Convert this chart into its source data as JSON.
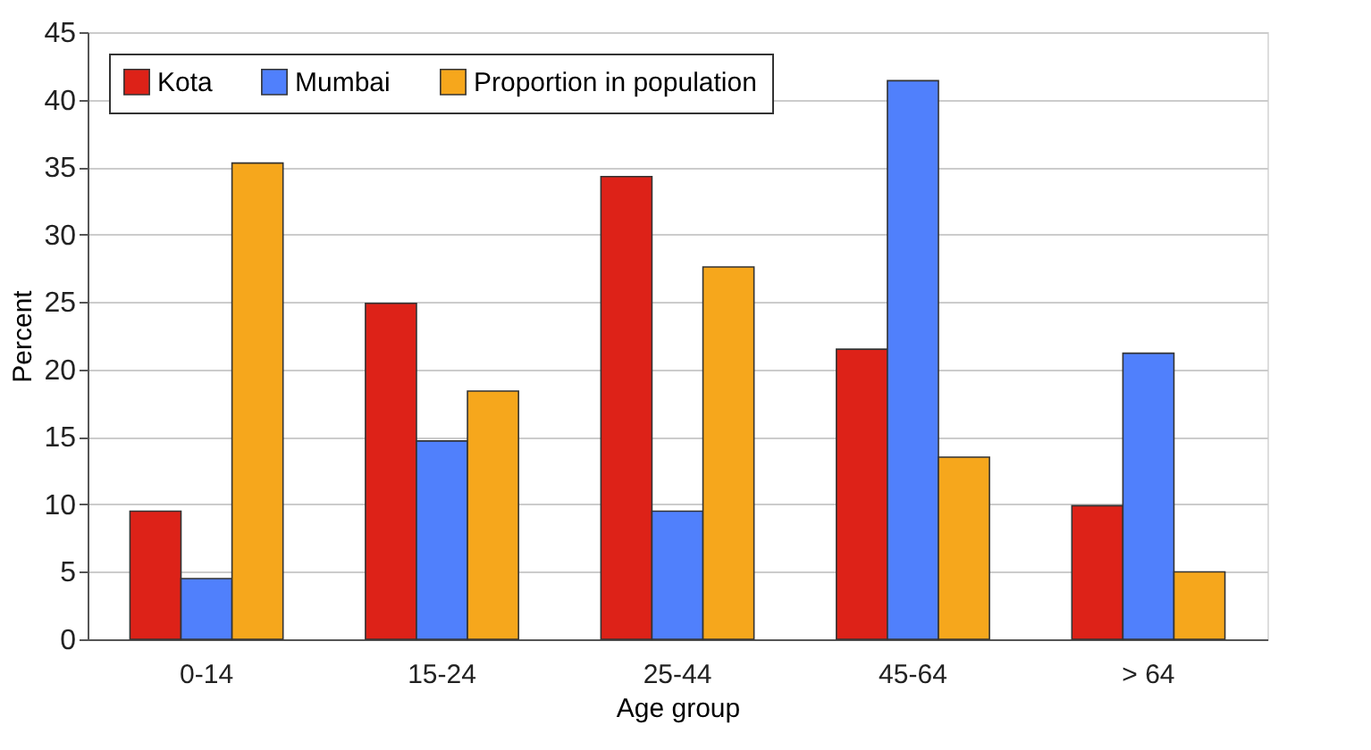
{
  "chart_data": {
    "type": "bar",
    "xlabel": "Age group",
    "ylabel": "Percent",
    "categories": [
      "0-14",
      "15-24",
      "25-44",
      "45-64",
      "> 64"
    ],
    "series": [
      {
        "name": "Kota",
        "color": "#dd2218",
        "values": [
          9.5,
          24.9,
          34.3,
          21.5,
          9.9
        ]
      },
      {
        "name": "Mumbai",
        "color": "#5080fc",
        "values": [
          4.5,
          14.7,
          9.5,
          41.4,
          21.2
        ]
      },
      {
        "name": "Proportion in population",
        "color": "#f6a71c",
        "values": [
          35.3,
          18.4,
          27.6,
          13.5,
          5.0
        ]
      }
    ],
    "ylim": [
      0,
      45
    ],
    "yticks": [
      0,
      5,
      10,
      15,
      20,
      25,
      30,
      35,
      40,
      45
    ],
    "grid": "y",
    "legend": "top left"
  }
}
